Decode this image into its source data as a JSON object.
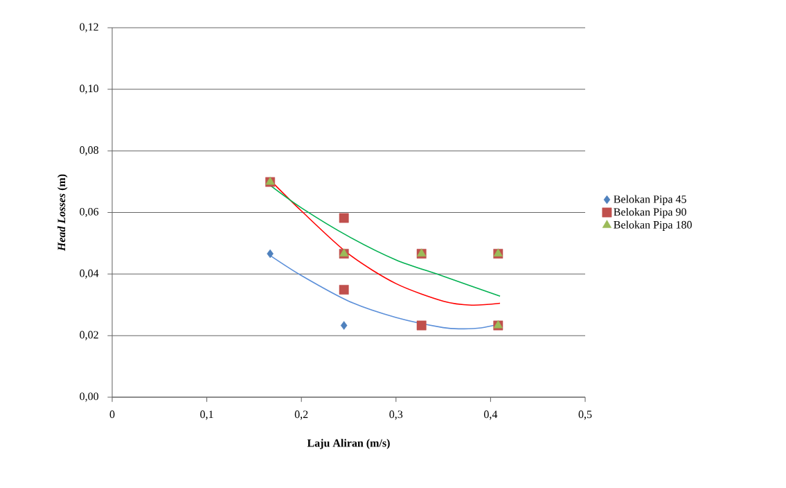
{
  "chart_data": {
    "type": "scatter",
    "xlabel": "Laju Aliran (m/s)",
    "ylabel": "*Head Losses* (m)",
    "xlim": [
      0,
      0.5
    ],
    "ylim": [
      0,
      0.12
    ],
    "xticks": [
      0,
      {
        "value": 0.1,
        "label": "0,1"
      },
      {
        "value": 0.2,
        "label": "0,2"
      },
      {
        "value": 0.3,
        "label": "0,3"
      },
      {
        "value": 0.4,
        "label": "0,4"
      },
      {
        "value": 0.5,
        "label": "0,5"
      }
    ],
    "yticks": [
      {
        "value": 0,
        "label": "0,00"
      },
      {
        "value": 0.02,
        "label": "0,02"
      },
      {
        "value": 0.04,
        "label": "0,04"
      },
      {
        "value": 0.06,
        "label": "0,06"
      },
      {
        "value": 0.08,
        "label": "0,08"
      },
      {
        "value": 0.1,
        "label": "0,10"
      },
      {
        "value": 0.12,
        "label": "0,12"
      }
    ],
    "grid": "y",
    "legend": "right",
    "series": [
      {
        "name": "Belokan Pipa 45",
        "color": "#4f81bd",
        "marker": "diamond",
        "x": [
          0.167,
          0.245
        ],
        "values": [
          0.0466,
          0.0233
        ]
      },
      {
        "name": "Belokan Pipa 90",
        "color": "#c0504d",
        "marker": "square",
        "x": [
          0.167,
          0.245,
          0.245,
          0.245,
          0.327,
          0.327,
          0.408,
          0.408
        ],
        "values": [
          0.0699,
          0.0582,
          0.0466,
          0.0349,
          0.0466,
          0.0233,
          0.0466,
          0.0233
        ]
      },
      {
        "name": "Belokan Pipa 180",
        "color": "#9bbb59",
        "marker": "triangle",
        "x": [
          0.167,
          0.245,
          0.327,
          0.408,
          0.408
        ],
        "values": [
          0.0699,
          0.0466,
          0.0466,
          0.0466,
          0.0233
        ]
      },
      {
        "type": "line",
        "color": "#5b8fd9",
        "marker": "none",
        "x": [
          0.167,
          0.2,
          0.25,
          0.3,
          0.35,
          0.37,
          0.39,
          0.41
        ],
        "values": [
          0.046,
          0.0395,
          0.0312,
          0.0259,
          0.0226,
          0.0222,
          0.0225,
          0.0238
        ]
      },
      {
        "type": "line",
        "color": "#ff0000",
        "marker": "none",
        "x": [
          0.167,
          0.2,
          0.25,
          0.3,
          0.35,
          0.38,
          0.41
        ],
        "values": [
          0.0705,
          0.0605,
          0.0465,
          0.0369,
          0.0312,
          0.0299,
          0.0305
        ]
      },
      {
        "type": "line",
        "color": "#00b050",
        "marker": "none",
        "x": [
          0.167,
          0.2,
          0.25,
          0.3,
          0.35,
          0.41
        ],
        "values": [
          0.0688,
          0.0615,
          0.0522,
          0.0446,
          0.0393,
          0.0328
        ]
      }
    ]
  }
}
